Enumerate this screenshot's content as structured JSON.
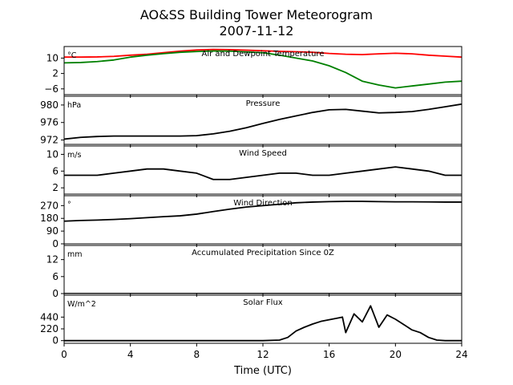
{
  "figure": {
    "title_line1": "AO&SS Building Tower Meteorogram",
    "title_line2": "2007-11-12",
    "xlabel": "Time (UTC)",
    "xticks": [
      0,
      4,
      8,
      12,
      16,
      20,
      24
    ],
    "xlim": [
      0,
      24
    ]
  },
  "chart_data": [
    {
      "type": "line",
      "title": "Air and Dewpoint Temperature",
      "unit": "°C",
      "ylim": [
        -9,
        16
      ],
      "yticks": [
        10,
        2,
        -6
      ],
      "series": [
        {
          "color": "#ff0000",
          "x": [
            0,
            1,
            2,
            3,
            4,
            5,
            6,
            7,
            8,
            9,
            10,
            11,
            12,
            13,
            14,
            15,
            16,
            17,
            18,
            19,
            20,
            21,
            22,
            23,
            24
          ],
          "y": [
            10.5,
            10.5,
            10.6,
            10.9,
            11.5,
            12.0,
            12.8,
            13.6,
            14.2,
            14.5,
            14.4,
            14.1,
            13.8,
            13.5,
            13.3,
            13.0,
            12.4,
            12.0,
            11.8,
            12.2,
            12.5,
            12.2,
            11.5,
            11.0,
            10.5
          ]
        },
        {
          "color": "#008000",
          "x": [
            0,
            1,
            2,
            3,
            4,
            5,
            6,
            7,
            8,
            9,
            10,
            11,
            12,
            13,
            14,
            15,
            16,
            17,
            18,
            19,
            20,
            21,
            22,
            23,
            24
          ],
          "y": [
            7.5,
            7.7,
            8.2,
            9.0,
            10.5,
            11.5,
            12.3,
            13.0,
            13.4,
            13.7,
            13.6,
            13.2,
            12.8,
            11.5,
            10.0,
            8.5,
            6.0,
            2.5,
            -2.0,
            -4.0,
            -5.5,
            -4.5,
            -3.5,
            -2.5,
            -2.0
          ]
        }
      ]
    },
    {
      "type": "line",
      "title": "Pressure",
      "unit": "hPa",
      "ylim": [
        971,
        982
      ],
      "yticks": [
        980,
        976,
        972
      ],
      "series": [
        {
          "color": "#000000",
          "x": [
            0,
            1,
            2,
            3,
            4,
            5,
            6,
            7,
            8,
            9,
            10,
            11,
            12,
            13,
            14,
            15,
            16,
            17,
            18,
            19,
            20,
            21,
            22,
            23,
            24
          ],
          "y": [
            972.2,
            972.6,
            972.8,
            972.9,
            972.9,
            972.9,
            972.9,
            972.9,
            973.0,
            973.4,
            974.0,
            974.8,
            975.8,
            976.7,
            977.5,
            978.3,
            978.9,
            979.0,
            978.6,
            978.2,
            978.3,
            978.5,
            979.0,
            979.6,
            980.2
          ]
        }
      ]
    },
    {
      "type": "line",
      "title": "Wind Speed",
      "unit": "m/s",
      "ylim": [
        0.5,
        12
      ],
      "yticks": [
        10,
        6,
        2
      ],
      "series": [
        {
          "color": "#000000",
          "x": [
            0,
            1,
            2,
            3,
            4,
            5,
            6,
            7,
            8,
            9,
            10,
            11,
            12,
            13,
            14,
            15,
            16,
            17,
            18,
            19,
            20,
            21,
            22,
            23,
            24
          ],
          "y": [
            5.0,
            5.0,
            5.0,
            5.5,
            6.0,
            6.5,
            6.5,
            6.0,
            5.5,
            4.0,
            4.0,
            4.5,
            5.0,
            5.5,
            5.5,
            5.0,
            5.0,
            5.5,
            6.0,
            6.5,
            7.0,
            6.5,
            6.0,
            5.0,
            5.0
          ]
        }
      ]
    },
    {
      "type": "line",
      "title": "Wind Direction",
      "unit": "°",
      "ylim": [
        0,
        340
      ],
      "yticks": [
        270,
        180,
        90,
        0
      ],
      "series": [
        {
          "color": "#000000",
          "x": [
            0,
            1,
            2,
            3,
            4,
            5,
            6,
            7,
            8,
            9,
            10,
            11,
            12,
            13,
            14,
            15,
            16,
            17,
            18,
            19,
            20,
            21,
            22,
            23,
            24
          ],
          "y": [
            160,
            165,
            168,
            172,
            178,
            185,
            192,
            198,
            210,
            228,
            245,
            260,
            270,
            280,
            290,
            295,
            298,
            300,
            300,
            298,
            297,
            297,
            296,
            295,
            295
          ]
        }
      ]
    },
    {
      "type": "line",
      "title": "Accumulated Precipitation Since 0Z",
      "unit": "mm",
      "ylim": [
        0,
        17
      ],
      "yticks": [
        12,
        6,
        0
      ],
      "series": [
        {
          "color": "#000000",
          "x": [
            0,
            24
          ],
          "y": [
            0,
            0
          ]
        }
      ]
    },
    {
      "type": "line",
      "title": "Solar Flux",
      "unit": "W/m^2",
      "ylim": [
        -50,
        850
      ],
      "yticks": [
        440,
        220,
        0
      ],
      "series": [
        {
          "color": "#000000",
          "x": [
            0,
            6,
            12,
            13,
            13.5,
            14,
            14.5,
            15,
            15.5,
            16,
            16.5,
            16.8,
            17,
            17.5,
            18,
            18.5,
            19,
            19.5,
            20,
            20.5,
            21,
            21.5,
            22,
            22.5,
            23,
            24
          ],
          "y": [
            0,
            0,
            0,
            10,
            60,
            180,
            250,
            310,
            360,
            390,
            420,
            440,
            150,
            500,
            350,
            650,
            250,
            480,
            400,
            300,
            200,
            150,
            60,
            10,
            0,
            0
          ]
        }
      ]
    }
  ]
}
